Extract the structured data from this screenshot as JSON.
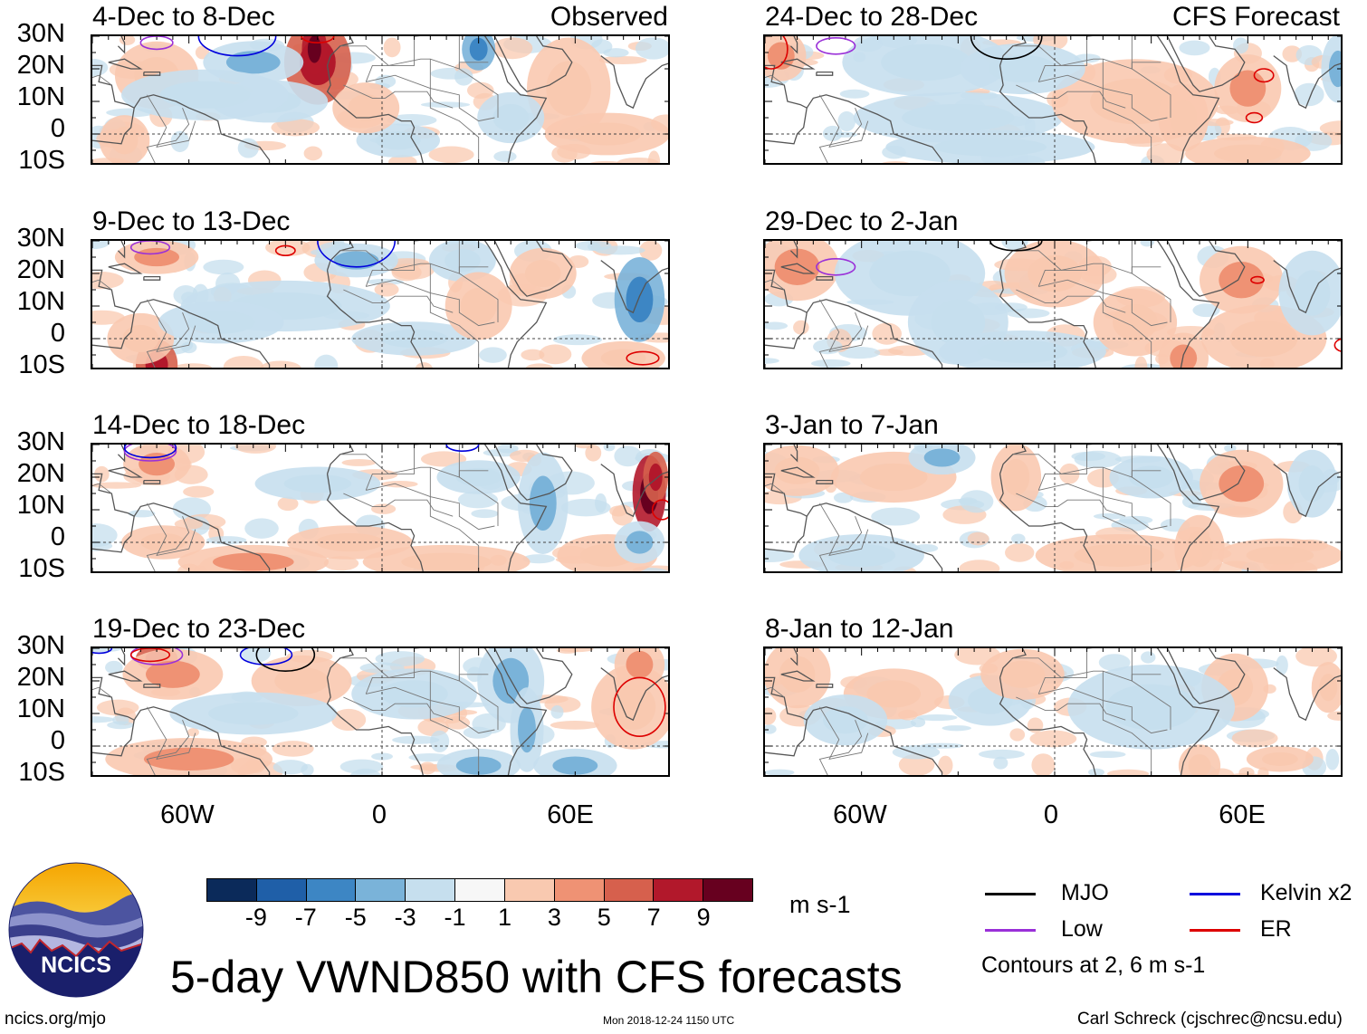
{
  "panels_left": [
    {
      "date_range": "4-Dec to 8-Dec",
      "label": "Observed"
    },
    {
      "date_range": "9-Dec to 13-Dec"
    },
    {
      "date_range": "14-Dec to 18-Dec"
    },
    {
      "date_range": "19-Dec to 23-Dec"
    }
  ],
  "panels_right": [
    {
      "date_range": "24-Dec to 28-Dec",
      "label": "CFS Forecast"
    },
    {
      "date_range": "29-Dec to 2-Jan"
    },
    {
      "date_range": "3-Jan to 7-Jan"
    },
    {
      "date_range": "8-Jan to 12-Jan"
    }
  ],
  "lat_labels": [
    "30N",
    "20N",
    "10N",
    "0",
    "10S"
  ],
  "lon_labels": [
    "60W",
    "0",
    "60E"
  ],
  "colorbar": {
    "labels": [
      "-9",
      "-7",
      "-5",
      "-3",
      "-1",
      "1",
      "3",
      "5",
      "7",
      "9"
    ],
    "colors": [
      "#0b2a5a",
      "#1f5fa8",
      "#3d86c4",
      "#7ab3d9",
      "#c6dfee",
      "#f7f7f7",
      "#f9c9b0",
      "#ef9274",
      "#d6604d",
      "#b2182b",
      "#67001f"
    ],
    "units": "m s-1"
  },
  "legend": {
    "mjo": {
      "label": "MJO",
      "color": "#000000"
    },
    "kelvin": {
      "label": "Kelvin x2",
      "color": "#0000dd"
    },
    "low": {
      "label": "Low",
      "color": "#9a30d8"
    },
    "er": {
      "label": "ER",
      "color": "#dd0000"
    },
    "note": "Contours at 2, 6 m s-1"
  },
  "title": "5-day VWND850 with CFS forecasts",
  "footer": {
    "site": "ncics.org/mjo",
    "timestamp": "Mon 2018-12-24 1150 UTC",
    "author": "Carl Schreck (cjschrec@ncsu.edu)"
  },
  "logo": {
    "text": "NCICS"
  }
}
